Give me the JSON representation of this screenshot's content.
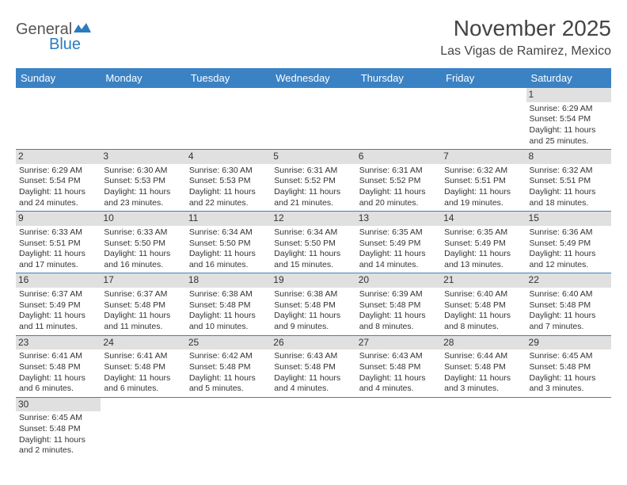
{
  "logo": {
    "part1": "General",
    "part2": "Blue"
  },
  "title": "November 2025",
  "location": "Las Vigas de Ramirez, Mexico",
  "colors": {
    "header_bg": "#3b82c4",
    "header_fg": "#ffffff",
    "daynum_bg": "#e0e0e0",
    "border": "#3b82c4",
    "logo_accent": "#2b7bbf"
  },
  "weekdays": [
    "Sunday",
    "Monday",
    "Tuesday",
    "Wednesday",
    "Thursday",
    "Friday",
    "Saturday"
  ],
  "labels": {
    "sunrise": "Sunrise:",
    "sunset": "Sunset:",
    "daylight": "Daylight:"
  },
  "weeks": [
    [
      null,
      null,
      null,
      null,
      null,
      null,
      {
        "n": "1",
        "sr": "6:29 AM",
        "ss": "5:54 PM",
        "dl": "11 hours and 25 minutes."
      }
    ],
    [
      {
        "n": "2",
        "sr": "6:29 AM",
        "ss": "5:54 PM",
        "dl": "11 hours and 24 minutes."
      },
      {
        "n": "3",
        "sr": "6:30 AM",
        "ss": "5:53 PM",
        "dl": "11 hours and 23 minutes."
      },
      {
        "n": "4",
        "sr": "6:30 AM",
        "ss": "5:53 PM",
        "dl": "11 hours and 22 minutes."
      },
      {
        "n": "5",
        "sr": "6:31 AM",
        "ss": "5:52 PM",
        "dl": "11 hours and 21 minutes."
      },
      {
        "n": "6",
        "sr": "6:31 AM",
        "ss": "5:52 PM",
        "dl": "11 hours and 20 minutes."
      },
      {
        "n": "7",
        "sr": "6:32 AM",
        "ss": "5:51 PM",
        "dl": "11 hours and 19 minutes."
      },
      {
        "n": "8",
        "sr": "6:32 AM",
        "ss": "5:51 PM",
        "dl": "11 hours and 18 minutes."
      }
    ],
    [
      {
        "n": "9",
        "sr": "6:33 AM",
        "ss": "5:51 PM",
        "dl": "11 hours and 17 minutes."
      },
      {
        "n": "10",
        "sr": "6:33 AM",
        "ss": "5:50 PM",
        "dl": "11 hours and 16 minutes."
      },
      {
        "n": "11",
        "sr": "6:34 AM",
        "ss": "5:50 PM",
        "dl": "11 hours and 16 minutes."
      },
      {
        "n": "12",
        "sr": "6:34 AM",
        "ss": "5:50 PM",
        "dl": "11 hours and 15 minutes."
      },
      {
        "n": "13",
        "sr": "6:35 AM",
        "ss": "5:49 PM",
        "dl": "11 hours and 14 minutes."
      },
      {
        "n": "14",
        "sr": "6:35 AM",
        "ss": "5:49 PM",
        "dl": "11 hours and 13 minutes."
      },
      {
        "n": "15",
        "sr": "6:36 AM",
        "ss": "5:49 PM",
        "dl": "11 hours and 12 minutes."
      }
    ],
    [
      {
        "n": "16",
        "sr": "6:37 AM",
        "ss": "5:49 PM",
        "dl": "11 hours and 11 minutes."
      },
      {
        "n": "17",
        "sr": "6:37 AM",
        "ss": "5:48 PM",
        "dl": "11 hours and 11 minutes."
      },
      {
        "n": "18",
        "sr": "6:38 AM",
        "ss": "5:48 PM",
        "dl": "11 hours and 10 minutes."
      },
      {
        "n": "19",
        "sr": "6:38 AM",
        "ss": "5:48 PM",
        "dl": "11 hours and 9 minutes."
      },
      {
        "n": "20",
        "sr": "6:39 AM",
        "ss": "5:48 PM",
        "dl": "11 hours and 8 minutes."
      },
      {
        "n": "21",
        "sr": "6:40 AM",
        "ss": "5:48 PM",
        "dl": "11 hours and 8 minutes."
      },
      {
        "n": "22",
        "sr": "6:40 AM",
        "ss": "5:48 PM",
        "dl": "11 hours and 7 minutes."
      }
    ],
    [
      {
        "n": "23",
        "sr": "6:41 AM",
        "ss": "5:48 PM",
        "dl": "11 hours and 6 minutes."
      },
      {
        "n": "24",
        "sr": "6:41 AM",
        "ss": "5:48 PM",
        "dl": "11 hours and 6 minutes."
      },
      {
        "n": "25",
        "sr": "6:42 AM",
        "ss": "5:48 PM",
        "dl": "11 hours and 5 minutes."
      },
      {
        "n": "26",
        "sr": "6:43 AM",
        "ss": "5:48 PM",
        "dl": "11 hours and 4 minutes."
      },
      {
        "n": "27",
        "sr": "6:43 AM",
        "ss": "5:48 PM",
        "dl": "11 hours and 4 minutes."
      },
      {
        "n": "28",
        "sr": "6:44 AM",
        "ss": "5:48 PM",
        "dl": "11 hours and 3 minutes."
      },
      {
        "n": "29",
        "sr": "6:45 AM",
        "ss": "5:48 PM",
        "dl": "11 hours and 3 minutes."
      }
    ],
    [
      {
        "n": "30",
        "sr": "6:45 AM",
        "ss": "5:48 PM",
        "dl": "11 hours and 2 minutes."
      },
      null,
      null,
      null,
      null,
      null,
      null
    ]
  ]
}
